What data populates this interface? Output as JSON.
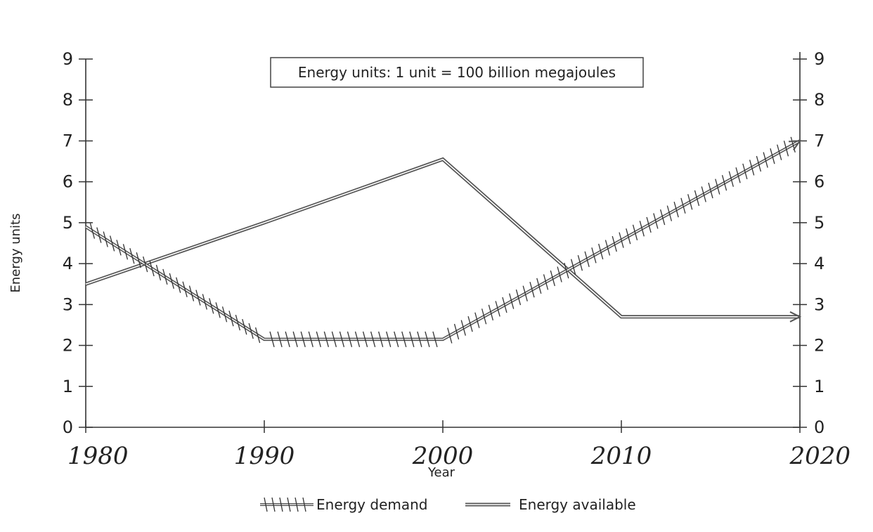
{
  "chart_data": {
    "type": "line",
    "annotation": "Energy units: 1 unit = 100 billion megajoules",
    "xlabel": "Year",
    "ylabel": "Energy units",
    "xlim": [
      1980,
      2020
    ],
    "ylim": [
      0,
      9
    ],
    "x_ticks": [
      {
        "value": 1980,
        "label": "1980"
      },
      {
        "value": 1990,
        "label": "1990"
      },
      {
        "value": 2000,
        "label": "2000"
      },
      {
        "value": 2010,
        "label": "2010"
      },
      {
        "value": 2020,
        "label": "2020"
      }
    ],
    "y_ticks": [
      "0",
      "1",
      "2",
      "3",
      "4",
      "5",
      "6",
      "7",
      "8",
      "9"
    ],
    "legend_position": "bottom-center",
    "series": [
      {
        "name": "Energy demand",
        "style": "hatched",
        "color": "#555555",
        "x": [
          1980,
          1990,
          2000,
          2020
        ],
        "y": [
          4.9,
          2.15,
          2.15,
          7.0
        ]
      },
      {
        "name": "Energy available",
        "style": "double-line",
        "color": "#555555",
        "x": [
          1980,
          1990,
          2000,
          2010,
          2020
        ],
        "y": [
          3.5,
          5.0,
          6.55,
          2.7,
          2.7
        ]
      }
    ]
  }
}
